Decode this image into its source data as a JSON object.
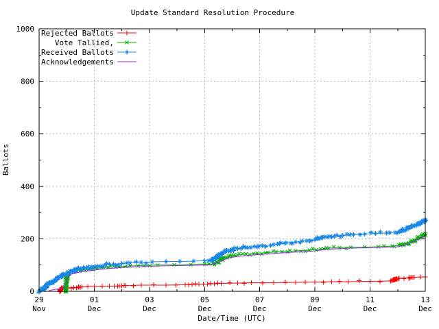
{
  "title": "Update Standard Resolution Procedure",
  "legend": {
    "position": "top-left-inside",
    "items": [
      {
        "label": "Rejected Ballots",
        "series": "rejected"
      },
      {
        "label": "Vote Tallied,",
        "series": "tallied"
      },
      {
        "label": "Received Ballots",
        "series": "received"
      },
      {
        "label": "Acknowledgements",
        "series": "acknowledgements"
      }
    ]
  },
  "colors": {
    "rejected": "#ff0000",
    "tallied": "#00b000",
    "received": "#1c86e6",
    "acknowledgements": "#a020f0",
    "grid": "#b8b8b8",
    "axis": "#000000",
    "background": "#ffffff"
  },
  "chart_data": {
    "type": "line",
    "title": "Update Standard Resolution Procedure",
    "xlabel": "Date/Time (UTC)",
    "ylabel": "Ballots",
    "ylim": [
      0,
      1000
    ],
    "yticks": [
      0,
      200,
      400,
      600,
      800,
      1000
    ],
    "y_minor_step": 100,
    "x_days_range": [
      0,
      14
    ],
    "x_minor_step_days": 1,
    "grid": "dashed",
    "legend_position": "top-left-inside",
    "xticks": [
      {
        "day": 0,
        "line1": "29",
        "line2": "Nov"
      },
      {
        "day": 2,
        "line1": "01",
        "line2": "Dec"
      },
      {
        "day": 4,
        "line1": "03",
        "line2": "Dec"
      },
      {
        "day": 6,
        "line1": "05",
        "line2": "Dec"
      },
      {
        "day": 8,
        "line1": "07",
        "line2": "Dec"
      },
      {
        "day": 10,
        "line1": "09",
        "line2": "Dec"
      },
      {
        "day": 12,
        "line1": "11",
        "line2": "Dec"
      },
      {
        "day": 14,
        "line1": "13",
        "line2": "Dec"
      }
    ],
    "series": [
      {
        "name": "Rejected Ballots",
        "key": "rejected",
        "color": "#ff0000",
        "marker": "plus",
        "marker_density": "events",
        "points": [
          [
            0.75,
            0
          ],
          [
            0.78,
            8
          ],
          [
            0.85,
            12
          ],
          [
            1.05,
            13
          ],
          [
            1.25,
            14
          ],
          [
            1.42,
            15
          ],
          [
            1.48,
            16
          ],
          [
            1.55,
            17
          ],
          [
            2.0,
            18
          ],
          [
            2.55,
            19
          ],
          [
            2.85,
            20
          ],
          [
            3.0,
            21
          ],
          [
            3.15,
            22
          ],
          [
            3.7,
            23
          ],
          [
            4.6,
            24
          ],
          [
            5.3,
            25
          ],
          [
            5.55,
            26
          ],
          [
            5.8,
            27
          ],
          [
            6.1,
            28
          ],
          [
            6.35,
            29
          ],
          [
            6.6,
            30
          ],
          [
            7.2,
            31
          ],
          [
            7.7,
            32
          ],
          [
            8.5,
            33
          ],
          [
            9.3,
            34
          ],
          [
            10.0,
            35
          ],
          [
            10.6,
            36
          ],
          [
            11.2,
            37
          ],
          [
            12.0,
            38
          ],
          [
            12.75,
            39
          ],
          [
            12.85,
            43
          ],
          [
            12.95,
            47
          ],
          [
            13.05,
            50
          ],
          [
            13.4,
            51
          ],
          [
            13.5,
            53
          ],
          [
            13.6,
            54
          ],
          [
            14.0,
            55
          ]
        ]
      },
      {
        "name": "Vote Tallied,",
        "key": "tallied",
        "color": "#00b000",
        "marker": "cross",
        "marker_density": "dense",
        "points": [
          [
            0.95,
            0
          ],
          [
            0.97,
            20
          ],
          [
            1.0,
            45
          ],
          [
            1.03,
            60
          ],
          [
            1.08,
            68
          ],
          [
            1.15,
            73
          ],
          [
            1.3,
            77
          ],
          [
            1.5,
            80
          ],
          [
            1.8,
            84
          ],
          [
            2.1,
            87
          ],
          [
            2.5,
            91
          ],
          [
            2.9,
            94
          ],
          [
            3.3,
            96
          ],
          [
            3.8,
            98
          ],
          [
            4.3,
            100
          ],
          [
            4.9,
            101
          ],
          [
            5.5,
            102
          ],
          [
            6.0,
            103
          ],
          [
            6.3,
            105
          ],
          [
            6.45,
            112
          ],
          [
            6.6,
            121
          ],
          [
            6.75,
            129
          ],
          [
            6.95,
            135
          ],
          [
            7.2,
            139
          ],
          [
            7.5,
            142
          ],
          [
            7.9,
            145
          ],
          [
            8.3,
            148
          ],
          [
            8.8,
            151
          ],
          [
            9.3,
            154
          ],
          [
            9.8,
            157
          ],
          [
            10.2,
            161
          ],
          [
            10.5,
            164
          ],
          [
            10.9,
            166
          ],
          [
            11.3,
            168
          ],
          [
            11.8,
            169
          ],
          [
            12.3,
            170
          ],
          [
            12.8,
            172
          ],
          [
            13.1,
            175
          ],
          [
            13.3,
            182
          ],
          [
            13.55,
            192
          ],
          [
            13.8,
            205
          ],
          [
            14.0,
            220
          ]
        ]
      },
      {
        "name": "Received Ballots",
        "key": "received",
        "color": "#1c86e6",
        "marker": "asterisk",
        "marker_density": "dense",
        "points": [
          [
            0.0,
            0
          ],
          [
            0.08,
            4
          ],
          [
            0.17,
            10
          ],
          [
            0.25,
            17
          ],
          [
            0.33,
            24
          ],
          [
            0.42,
            31
          ],
          [
            0.5,
            37
          ],
          [
            0.58,
            44
          ],
          [
            0.67,
            50
          ],
          [
            0.75,
            55
          ],
          [
            0.83,
            60
          ],
          [
            0.92,
            64
          ],
          [
            1.0,
            68
          ],
          [
            1.1,
            72
          ],
          [
            1.2,
            76
          ],
          [
            1.35,
            81
          ],
          [
            1.5,
            85
          ],
          [
            1.7,
            89
          ],
          [
            1.9,
            93
          ],
          [
            2.1,
            96
          ],
          [
            2.4,
            100
          ],
          [
            2.7,
            103
          ],
          [
            3.0,
            106
          ],
          [
            3.3,
            108
          ],
          [
            3.7,
            110
          ],
          [
            4.1,
            112
          ],
          [
            4.6,
            113
          ],
          [
            5.1,
            114
          ],
          [
            5.6,
            115
          ],
          [
            6.0,
            116
          ],
          [
            6.25,
            118
          ],
          [
            6.4,
            127
          ],
          [
            6.55,
            138
          ],
          [
            6.7,
            148
          ],
          [
            6.85,
            155
          ],
          [
            7.0,
            159
          ],
          [
            7.2,
            163
          ],
          [
            7.5,
            167
          ],
          [
            7.8,
            171
          ],
          [
            8.1,
            174
          ],
          [
            8.5,
            178
          ],
          [
            8.9,
            183
          ],
          [
            9.3,
            188
          ],
          [
            9.7,
            192
          ],
          [
            10.0,
            196
          ],
          [
            10.2,
            202
          ],
          [
            10.45,
            207
          ],
          [
            10.7,
            210
          ],
          [
            11.0,
            213
          ],
          [
            11.4,
            216
          ],
          [
            11.8,
            218
          ],
          [
            12.2,
            220
          ],
          [
            12.6,
            222
          ],
          [
            12.9,
            224
          ],
          [
            13.1,
            228
          ],
          [
            13.3,
            236
          ],
          [
            13.5,
            245
          ],
          [
            13.7,
            254
          ],
          [
            13.85,
            262
          ],
          [
            14.0,
            272
          ]
        ]
      },
      {
        "name": "Acknowledgements",
        "key": "acknowledgements",
        "color": "#a020f0",
        "marker": "none",
        "marker_density": "none",
        "points": [
          [
            0.35,
            2
          ],
          [
            0.6,
            8
          ],
          [
            0.9,
            10
          ],
          [
            0.97,
            30
          ],
          [
            1.02,
            50
          ],
          [
            1.1,
            60
          ],
          [
            1.2,
            66
          ],
          [
            1.4,
            72
          ],
          [
            1.7,
            77
          ],
          [
            2.1,
            82
          ],
          [
            2.6,
            87
          ],
          [
            3.1,
            91
          ],
          [
            3.7,
            94
          ],
          [
            4.3,
            96
          ],
          [
            5.0,
            98
          ],
          [
            5.7,
            99
          ],
          [
            6.2,
            101
          ],
          [
            6.45,
            109
          ],
          [
            6.65,
            118
          ],
          [
            6.85,
            126
          ],
          [
            7.05,
            131
          ],
          [
            7.35,
            135
          ],
          [
            7.75,
            139
          ],
          [
            8.25,
            142
          ],
          [
            8.8,
            146
          ],
          [
            9.4,
            150
          ],
          [
            10.0,
            154
          ],
          [
            10.4,
            159
          ],
          [
            10.8,
            162
          ],
          [
            11.3,
            164
          ],
          [
            11.9,
            166
          ],
          [
            12.5,
            168
          ],
          [
            13.0,
            170
          ],
          [
            13.25,
            176
          ],
          [
            13.5,
            186
          ],
          [
            13.75,
            198
          ],
          [
            14.0,
            212
          ]
        ]
      }
    ]
  }
}
